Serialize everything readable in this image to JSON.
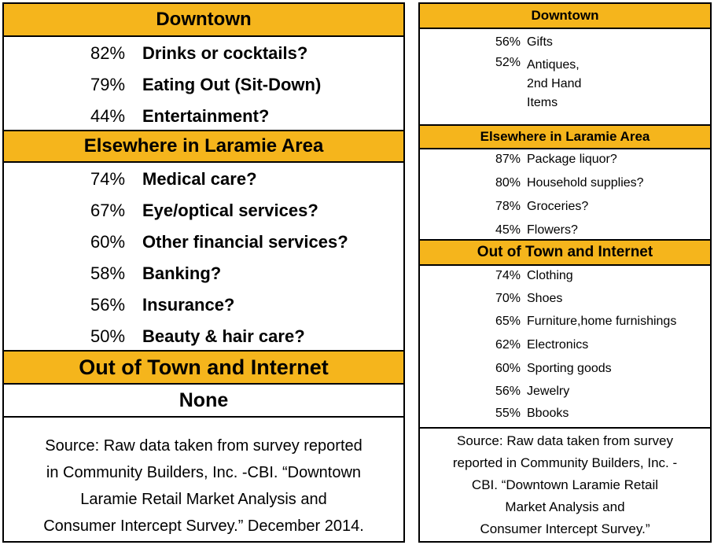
{
  "left": {
    "downtown_header": "Downtown",
    "downtown_items": [
      {
        "pct": "82%",
        "label": "Drinks or cocktails?"
      },
      {
        "pct": "79%",
        "label": "Eating Out (Sit-Down)"
      },
      {
        "pct": "44%",
        "label": "Entertainment?"
      }
    ],
    "elsewhere_header": "Elsewhere in Laramie Area",
    "elsewhere_items": [
      {
        "pct": "74%",
        "label": "Medical care?"
      },
      {
        "pct": "67%",
        "label": "Eye/optical services?"
      },
      {
        "pct": "60%",
        "label": "Other financial services?"
      },
      {
        "pct": "58%",
        "label": "Banking?"
      },
      {
        "pct": "56%",
        "label": "Insurance?"
      },
      {
        "pct": "50%",
        "label": "Beauty & hair care?"
      }
    ],
    "outoftown_header": "Out of Town and Internet",
    "outoftown_none": "None",
    "source_lines": [
      "Source: Raw data taken from survey reported",
      "in Community Builders, Inc. -CBI. “Downtown",
      "Laramie Retail Market Analysis and",
      "Consumer Intercept Survey.” December 2014."
    ]
  },
  "right": {
    "downtown_header": "Downtown",
    "downtown_items": [
      {
        "pct": "56%",
        "label": "Gifts"
      },
      {
        "pct": "52%",
        "label": "Antiques, 2nd Hand Items"
      }
    ],
    "elsewhere_header": "Elsewhere in Laramie Area",
    "elsewhere_items": [
      {
        "pct": "87%",
        "label": "Package liquor?"
      },
      {
        "pct": "80%",
        "label": "Household supplies?"
      },
      {
        "pct": "78%",
        "label": "Groceries?"
      },
      {
        "pct": "45%",
        "label": "Flowers?"
      }
    ],
    "outoftown_header": "Out of Town and Internet",
    "outoftown_items": [
      {
        "pct": "74%",
        "label": "Clothing"
      },
      {
        "pct": "70%",
        "label": "Shoes"
      },
      {
        "pct": "65%",
        "label": "Furniture,home furnishings"
      },
      {
        "pct": "62%",
        "label": "Electronics"
      },
      {
        "pct": "60%",
        "label": "Sporting goods"
      },
      {
        "pct": "56%",
        "label": "Jewelry"
      },
      {
        "pct": "55%",
        "label": "Bbooks"
      }
    ],
    "source_lines": [
      "Source: Raw data taken from survey",
      "reported in Community Builders, Inc. -",
      "CBI. “Downtown Laramie Retail",
      "Market Analysis and",
      "Consumer Intercept Survey.”"
    ]
  },
  "colors": {
    "header_fill": "#f5b51c",
    "border": "#000000"
  }
}
